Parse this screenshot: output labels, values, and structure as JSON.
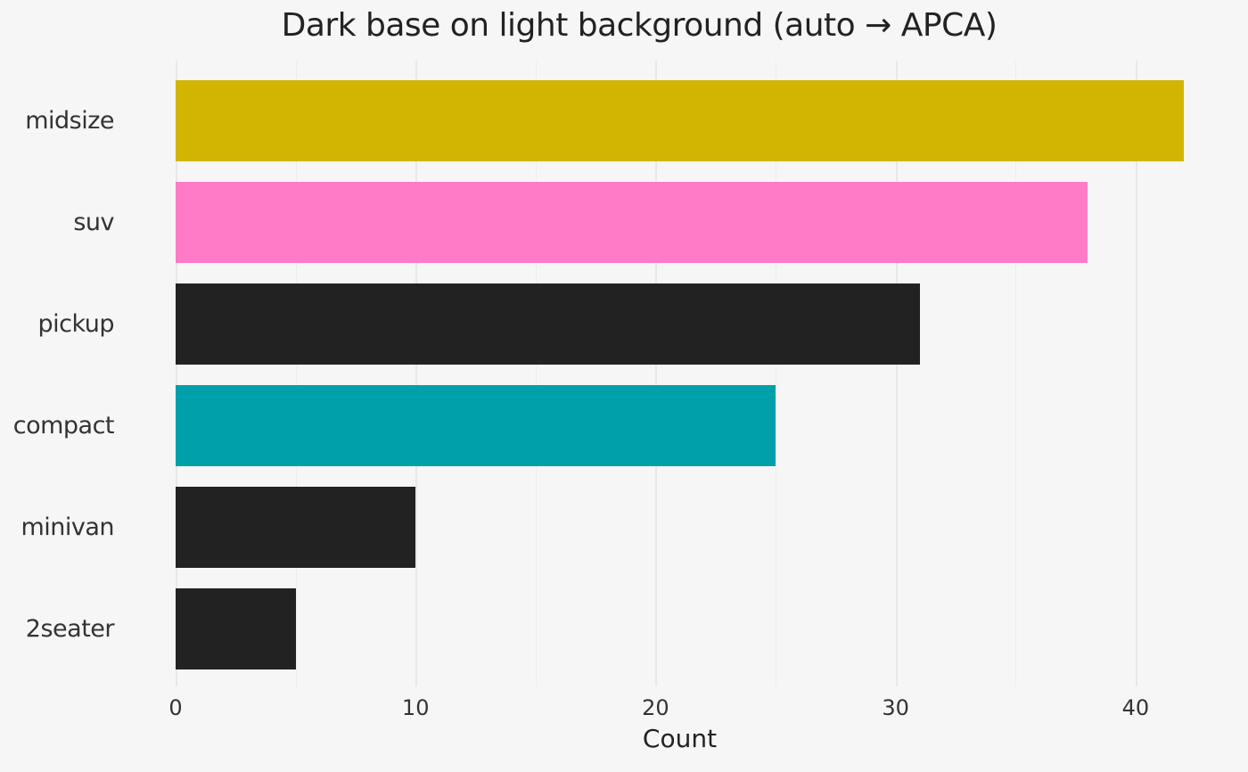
{
  "chart_data": {
    "type": "bar",
    "orientation": "horizontal",
    "title": "Dark base on light background (auto → APCA)",
    "xlabel": "Count",
    "ylabel": "",
    "categories": [
      "midsize",
      "suv",
      "pickup",
      "compact",
      "minivan",
      "2seater"
    ],
    "values": [
      42,
      38,
      31,
      25,
      10,
      5
    ],
    "bar_colors": [
      "#d2b500",
      "#ff7bc8",
      "#222222",
      "#00a0ab",
      "#222222",
      "#222222"
    ],
    "xlim": [
      0,
      44.5
    ],
    "x_ticks": [
      0,
      10,
      20,
      30,
      40
    ],
    "x_minor_ticks": [
      5,
      15,
      25,
      35
    ],
    "grid": "vertical",
    "legend": "none"
  },
  "style": {
    "background": "#f6f6f6",
    "major_grid_color": "#e8e8e8",
    "minor_grid_color": "#ededed",
    "title_color": "#222222",
    "axis_text_color": "#333333"
  }
}
